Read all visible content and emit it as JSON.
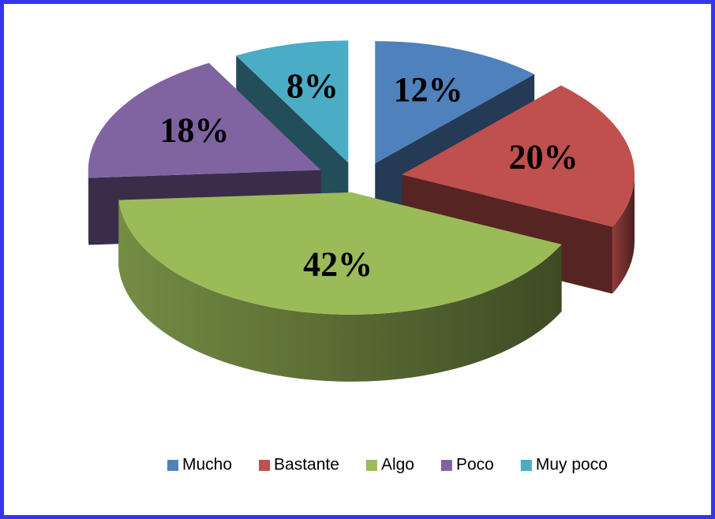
{
  "chart_data": {
    "type": "pie",
    "style": "3d-exploded",
    "categories": [
      "Mucho",
      "Bastante",
      "Algo",
      "Poco",
      "Muy poco"
    ],
    "values": [
      12,
      20,
      42,
      18,
      8
    ],
    "value_labels": [
      "12%",
      "20%",
      "42%",
      "18%",
      "8%"
    ],
    "colors": [
      "#4f81bd",
      "#c0504d",
      "#9bbb59",
      "#8064a2",
      "#4bacc6"
    ],
    "legend": "bottom"
  }
}
